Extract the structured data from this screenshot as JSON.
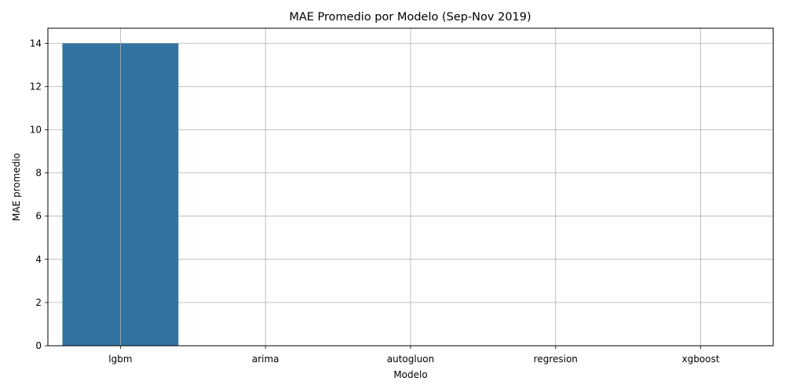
{
  "chart_data": {
    "type": "bar",
    "title": "MAE Promedio por Modelo (Sep-Nov 2019)",
    "xlabel": "Modelo",
    "ylabel": "MAE promedio",
    "categories": [
      "lgbm",
      "arima",
      "autogluon",
      "regresion",
      "xgboost"
    ],
    "values": [
      14.0,
      0,
      0,
      0,
      0
    ],
    "ylim": [
      0,
      14.7
    ],
    "yticks": [
      "0",
      "2",
      "4",
      "6",
      "8",
      "10",
      "12",
      "14"
    ],
    "grid": true,
    "bar_color": "#3274a1",
    "grid_color": "#b0b0b0"
  }
}
